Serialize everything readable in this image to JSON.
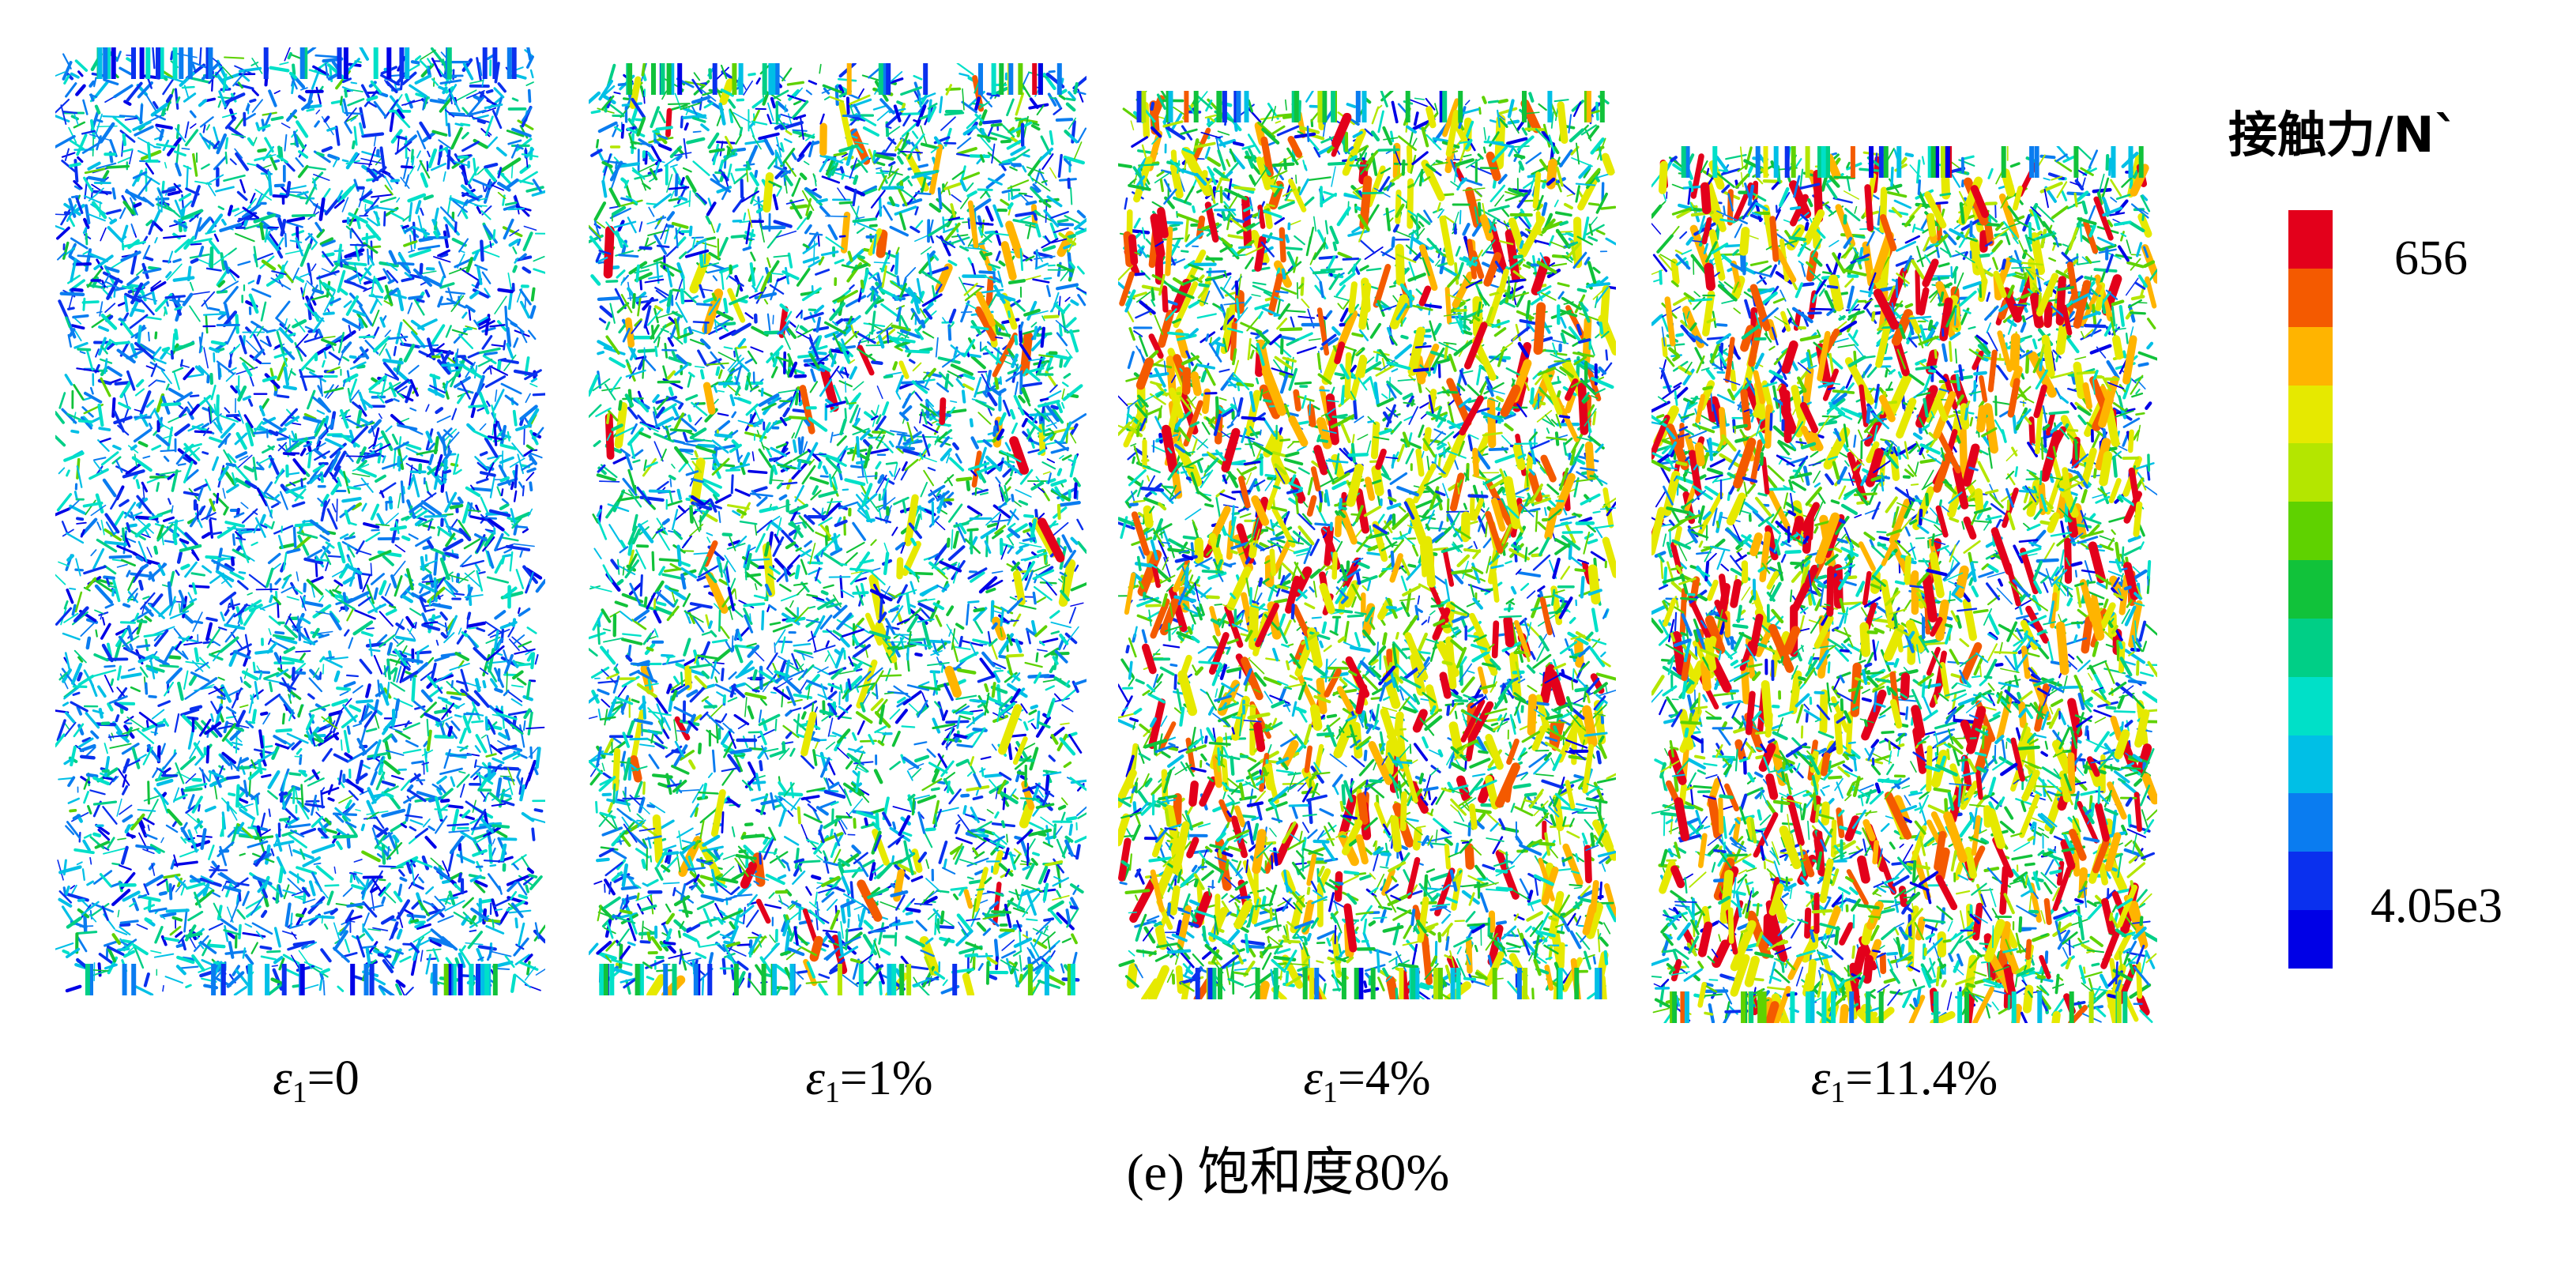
{
  "figure": {
    "caption": "(e) 饱和度80%"
  },
  "specimens": [
    {
      "strain_symbol": "ε",
      "strain_subscript": "1",
      "strain_value": "=0",
      "palette_mode": "initial"
    },
    {
      "strain_symbol": "ε",
      "strain_subscript": "1",
      "strain_value": "=1%",
      "palette_mode": "low"
    },
    {
      "strain_symbol": "ε",
      "strain_subscript": "1",
      "strain_value": "=4%",
      "palette_mode": "medium"
    },
    {
      "strain_symbol": "ε",
      "strain_subscript": "1",
      "strain_value": "=11.4%",
      "palette_mode": "high"
    }
  ],
  "legend": {
    "title": "接触力/N`",
    "max_label": "656",
    "min_label": "4.05e3",
    "colors": [
      "#e3001b",
      "#f45a00",
      "#ffb400",
      "#e6e900",
      "#b4e600",
      "#5fd200",
      "#11c23a",
      "#00cf86",
      "#00e0c8",
      "#00bfe6",
      "#0a7cf0",
      "#0a30ee",
      "#0000e6"
    ]
  }
}
